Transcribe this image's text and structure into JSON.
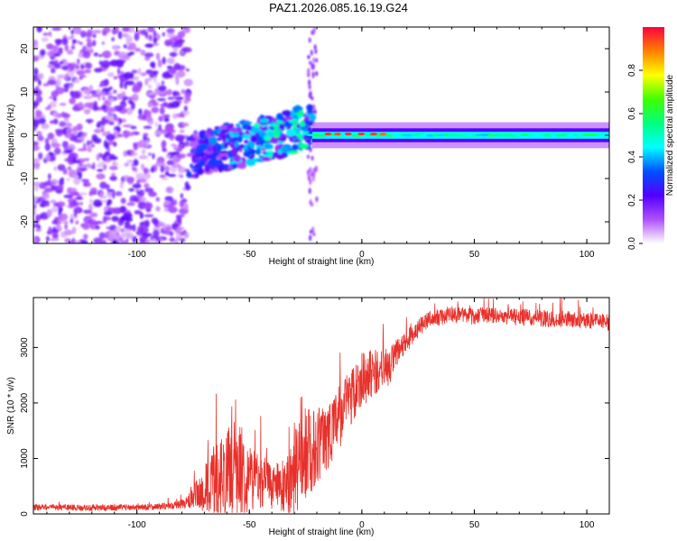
{
  "title": "PAZ1.2026.085.16.19.G24",
  "chart_data": [
    {
      "type": "heatmap",
      "title": "PAZ1.2026.085.16.19.G24",
      "xlabel": "Height of straight line (km)",
      "ylabel": "Frequency (Hz)",
      "xlim": [
        -146,
        110
      ],
      "ylim": [
        -25,
        25
      ],
      "xticks": [
        -100,
        -50,
        0,
        50,
        100
      ],
      "xtick_labels": [
        "-100",
        "-50",
        "0",
        "50",
        "100"
      ],
      "yticks": [
        -20,
        -10,
        0,
        10,
        20
      ],
      "ytick_labels": [
        "-20",
        "-10",
        "0",
        "10",
        "20"
      ],
      "colorbar": {
        "label": "Normalized spectral amplitude",
        "range": [
          0,
          1
        ],
        "ticks": [
          0.0,
          0.2,
          0.4,
          0.6,
          0.8
        ],
        "tick_labels": [
          "0.0",
          "0.2",
          "0.4",
          "0.6",
          "0.8"
        ],
        "colors": [
          "#ffffff",
          "#b050ff",
          "#5000ff",
          "#0050ff",
          "#00ffff",
          "#00ff80",
          "#40ff00",
          "#ffff00",
          "#ff8000",
          "#ff0040"
        ]
      },
      "regions": [
        {
          "name": "noise",
          "x": [
            -146,
            -77
          ],
          "amplitude": 0.2
        },
        {
          "name": "transition",
          "x": [
            -77,
            -22
          ],
          "freq_center": -2,
          "amplitude": 0.45
        },
        {
          "name": "carrier",
          "x": [
            -22,
            110
          ],
          "freq_center": 0,
          "amplitude": 0.5,
          "peak_near": [
            -15,
            12
          ]
        }
      ]
    },
    {
      "type": "line",
      "xlabel": "Height of straight line (km)",
      "ylabel": "SNR (10 * v/v)",
      "xlim": [
        -146,
        110
      ],
      "ylim": [
        0,
        3900
      ],
      "xticks": [
        -100,
        -50,
        0,
        50,
        100
      ],
      "xtick_labels": [
        "-100",
        "-50",
        "0",
        "50",
        "100"
      ],
      "yticks": [
        0,
        1000,
        2000,
        3000
      ],
      "ytick_labels": [
        "0",
        "1000",
        "2000",
        "3000"
      ],
      "series": [
        {
          "name": "SNR",
          "color": "#e8302a",
          "x": [
            -146,
            -120,
            -100,
            -85,
            -78,
            -72,
            -68,
            -64,
            -60,
            -56,
            -52,
            -48,
            -44,
            -40,
            -36,
            -32,
            -28,
            -24,
            -20,
            -16,
            -12,
            -8,
            -4,
            0,
            4,
            8,
            12,
            16,
            20,
            25,
            30,
            35,
            40,
            45,
            50,
            55,
            60,
            65,
            70,
            75,
            80,
            85,
            90,
            95,
            100,
            105,
            110
          ],
          "values": [
            120,
            110,
            120,
            140,
            200,
            350,
            500,
            650,
            750,
            850,
            700,
            650,
            600,
            500,
            480,
            600,
            900,
            1150,
            1200,
            1400,
            1600,
            1900,
            2200,
            2450,
            2500,
            2600,
            2650,
            2900,
            3100,
            3350,
            3500,
            3550,
            3600,
            3570,
            3550,
            3600,
            3580,
            3560,
            3540,
            3550,
            3530,
            3500,
            3520,
            3500,
            3480,
            3470,
            3450
          ],
          "spread": [
            80,
            80,
            80,
            90,
            150,
            500,
            800,
            1000,
            1100,
            1300,
            1000,
            800,
            700,
            600,
            600,
            900,
            1200,
            1200,
            1000,
            900,
            900,
            800,
            800,
            700,
            700,
            500,
            500,
            400,
            300,
            250,
            220,
            220,
            220,
            220,
            220,
            220,
            220,
            220,
            220,
            220,
            220,
            220,
            220,
            220,
            220,
            220,
            220
          ]
        }
      ]
    }
  ]
}
